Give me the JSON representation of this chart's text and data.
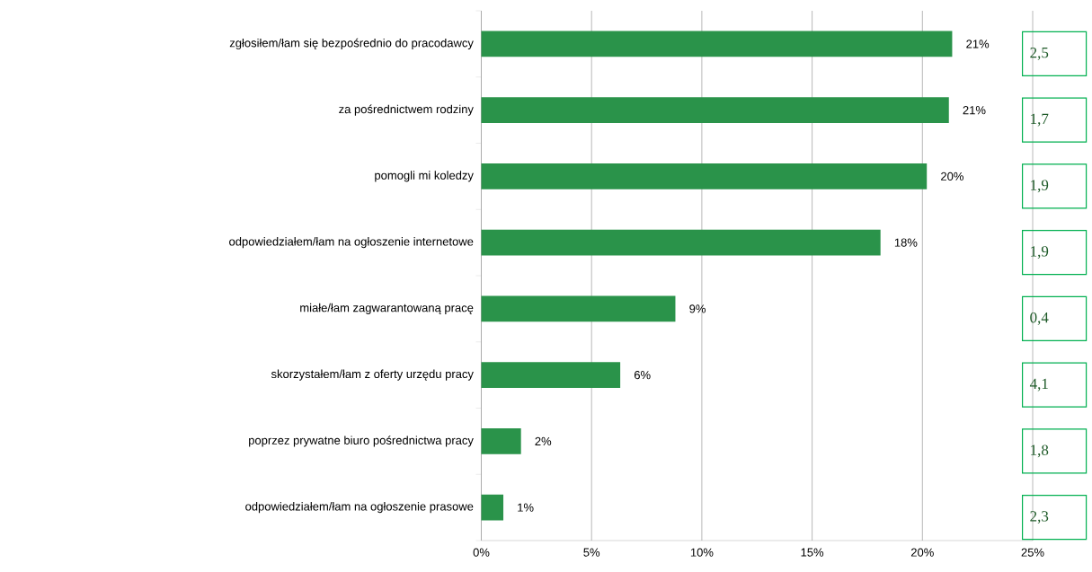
{
  "chart_data": {
    "type": "bar",
    "orientation": "horizontal",
    "categories": [
      "zgłosiłem/łam się bezpośrednio do pracodawcy",
      "za pośrednictwem rodziny",
      "pomogli mi koledzy",
      "odpowiedziałem/łam na ogłoszenie internetowe",
      "miałe/łam zagwarantowaną pracę",
      "skorzystałem/łam z oferty urzędu pracy",
      "poprzez prywatne biuro pośrednictwa pracy",
      "odpowiedziałem/łam na ogłoszenie prasowe"
    ],
    "values": [
      21.35,
      21.2,
      20.2,
      18.1,
      8.8,
      6.3,
      1.8,
      1.0
    ],
    "value_labels": [
      "21%",
      "21%",
      "20%",
      "18%",
      "9%",
      "6%",
      "2%",
      "1%"
    ],
    "color": "#2a934a",
    "xlim": [
      0,
      25
    ],
    "xticks": [
      {
        "value": 0,
        "label": "0%"
      },
      {
        "value": 5,
        "label": "5%"
      },
      {
        "value": 10,
        "label": "10%"
      },
      {
        "value": 15,
        "label": "15%"
      },
      {
        "value": 20,
        "label": "20%"
      },
      {
        "value": 25,
        "label": "25%"
      }
    ],
    "grid": "x",
    "annotations": [
      "2,5",
      "1,7",
      "1,9",
      "1,9",
      "0,4",
      "4,1",
      "1,8",
      "2,3"
    ]
  }
}
